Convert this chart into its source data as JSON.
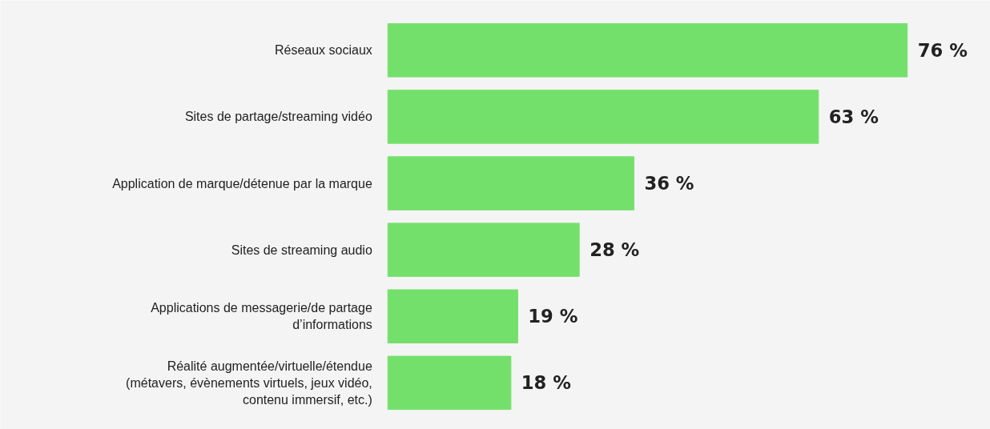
{
  "chart_data": {
    "type": "bar",
    "orientation": "horizontal",
    "categories": [
      "Réseaux sociaux",
      "Sites de partage/streaming vidéo",
      "Application de marque/détenue par la marque",
      "Sites de streaming audio",
      "Applications de messagerie/de partage d’informations",
      "Réalité augmentée/virtuelle/étendue (métavers, évènements virtuels, jeux vidéo, contenu immersif, etc.)"
    ],
    "values": [
      76,
      63,
      36,
      28,
      19,
      18
    ],
    "value_labels": [
      "76 %",
      "63 %",
      "36 %",
      "28 %",
      "19 %",
      "18 %"
    ],
    "color": "#74e06c"
  }
}
